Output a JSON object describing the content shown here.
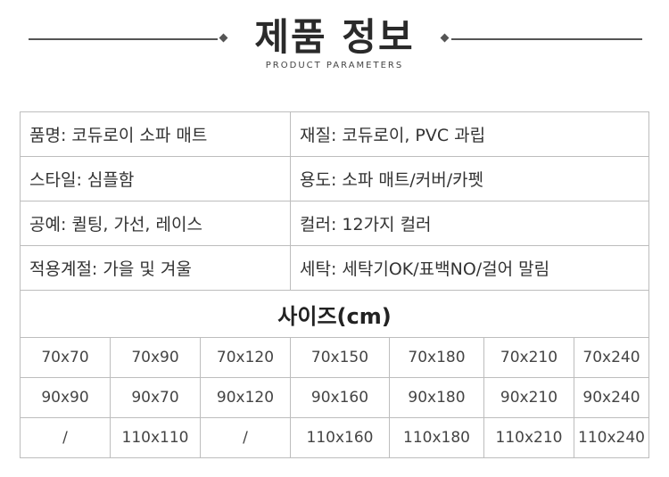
{
  "header": {
    "title": "제품 정보",
    "subtitle": "PRODUCT PARAMETERS"
  },
  "info": [
    [
      "품명: 코듀로이 소파 매트",
      "재질: 코듀로이, PVC 과립"
    ],
    [
      "스타일: 심플함",
      "용도: 소파 매트/커버/카펫"
    ],
    [
      "공예: 퀼팅, 가선, 레이스",
      "컬러: 12가지 컬러"
    ],
    [
      "적용계절: 가을 및 겨울",
      "세탁: 세탁기OK/표백NO/걸어 말림"
    ]
  ],
  "sizes": {
    "title": "사이즈(cm)",
    "rows": [
      [
        "70x70",
        "70x90",
        "70x120",
        "70x150",
        "70x180",
        "70x210",
        "70x240"
      ],
      [
        "90x90",
        "90x70",
        "90x120",
        "90x160",
        "90x180",
        "90x210",
        "90x240"
      ],
      [
        "/",
        "110x110",
        "/",
        "110x160",
        "110x180",
        "110x210",
        "110x240"
      ]
    ]
  }
}
